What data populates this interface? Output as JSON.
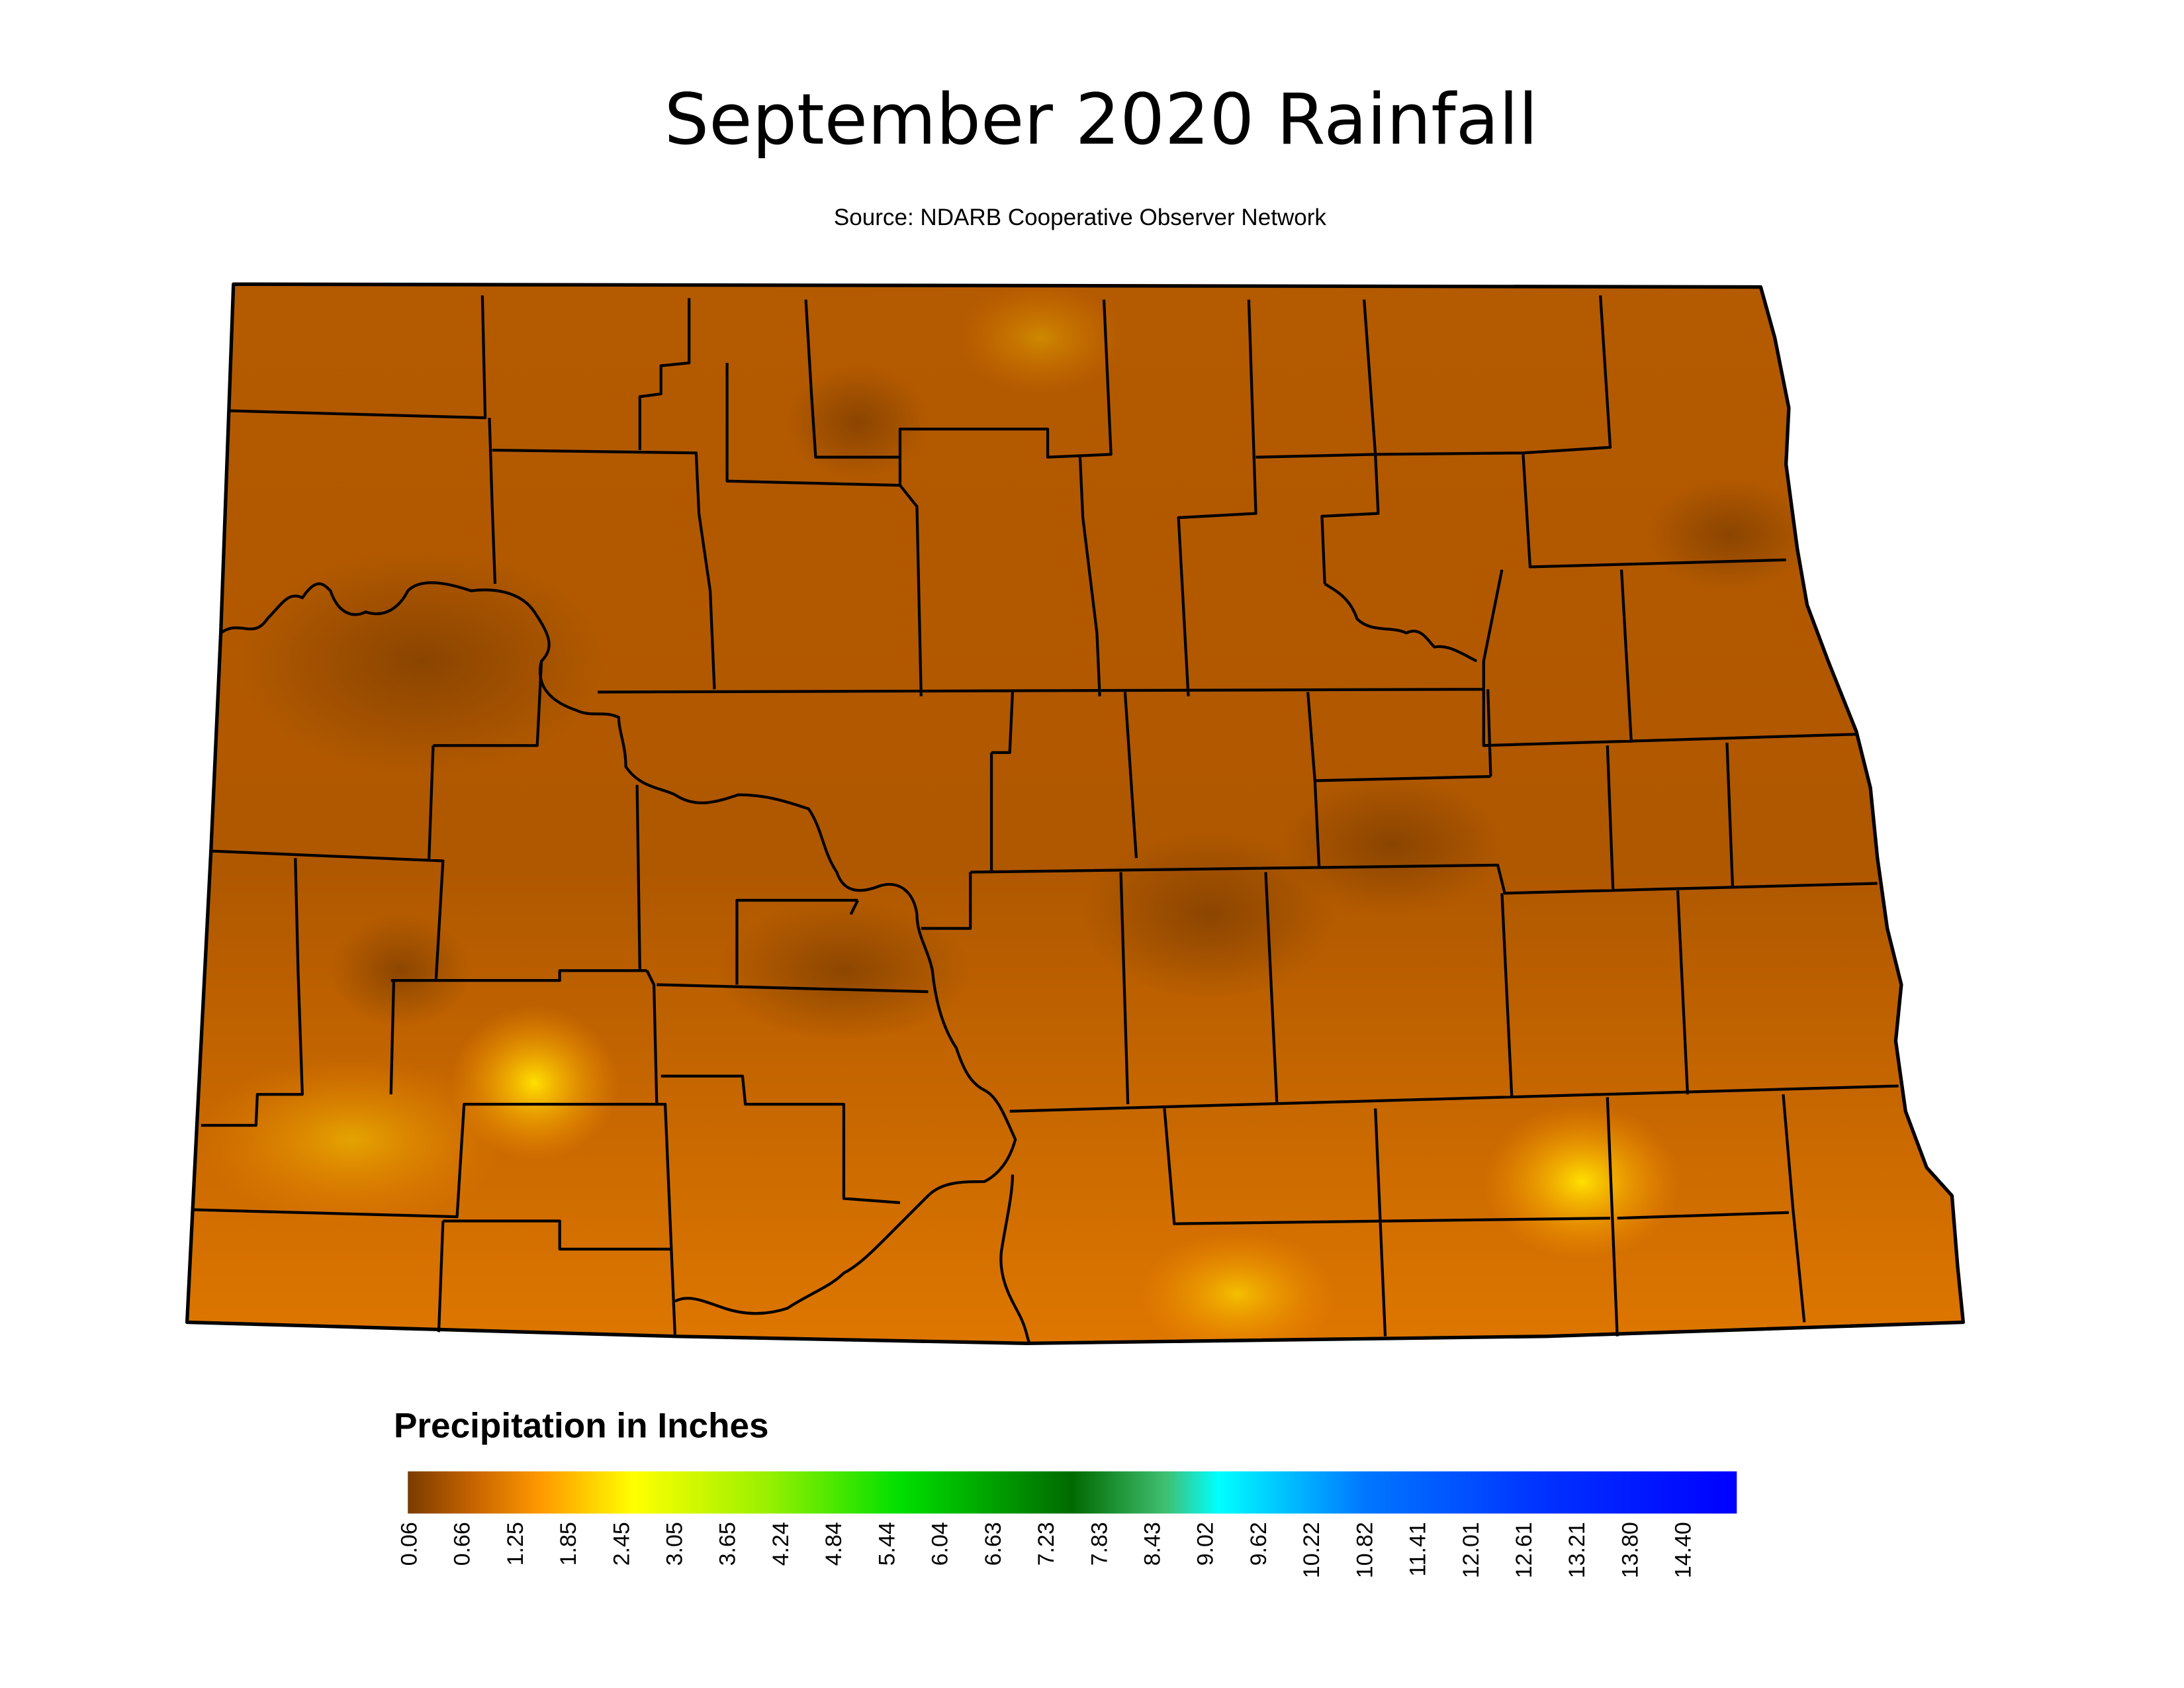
{
  "title": "September 2020 Rainfall",
  "source": "Source: NDARB Cooperative Observer Network",
  "legend": {
    "title": "Precipitation in Inches",
    "ticks": [
      "0.06",
      "0.66",
      "1.25",
      "1.85",
      "2.45",
      "3.05",
      "3.65",
      "4.24",
      "4.84",
      "5.44",
      "6.04",
      "6.63",
      "7.23",
      "7.83",
      "8.43",
      "9.02",
      "9.62",
      "10.22",
      "10.82",
      "11.41",
      "12.01",
      "12.61",
      "13.21",
      "13.80",
      "14.40"
    ]
  }
}
